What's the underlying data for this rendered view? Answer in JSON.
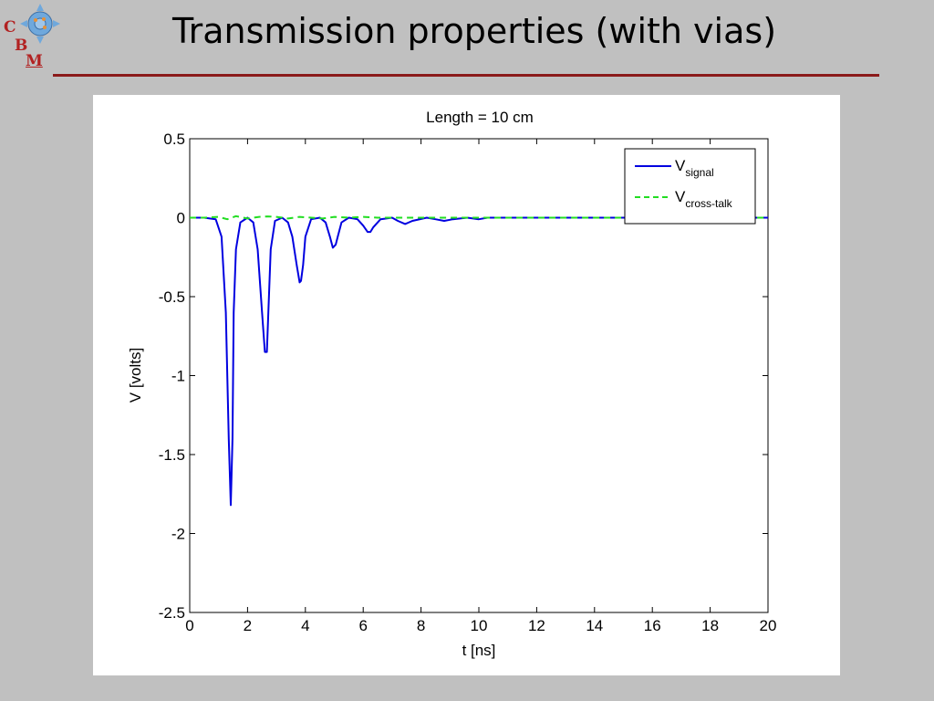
{
  "slide": {
    "title": "Transmission properties (with vias)",
    "logo": {
      "letters": [
        "C",
        "B",
        "M"
      ]
    }
  },
  "colors": {
    "background": "#c0c0c0",
    "title_rule": "#8b1a1a",
    "signal": "#0000e0",
    "crosstalk": "#22dd22"
  },
  "chart_data": {
    "type": "line",
    "title": "Length = 10 cm",
    "xlabel": "t [ns]",
    "ylabel": "V [volts]",
    "xlim": [
      0,
      20
    ],
    "ylim": [
      -2.5,
      0.5
    ],
    "xticks": [
      0,
      2,
      4,
      6,
      8,
      10,
      12,
      14,
      16,
      18,
      20
    ],
    "yticks": [
      0.5,
      0,
      -0.5,
      -1,
      -1.5,
      -2,
      -2.5
    ],
    "ytick_labels": [
      "0.5",
      "0",
      "-0.5",
      "-1",
      "-1.5",
      "-2",
      "-2.5"
    ],
    "grid": false,
    "legend_position": "top-right",
    "series": [
      {
        "name": "V",
        "subscript": "signal",
        "style": "solid",
        "color": "#0000e0",
        "x": [
          0,
          0.5,
          0.9,
          1.1,
          1.25,
          1.35,
          1.42,
          1.48,
          1.52,
          1.6,
          1.75,
          2.0,
          2.2,
          2.35,
          2.5,
          2.6,
          2.67,
          2.72,
          2.8,
          2.95,
          3.2,
          3.4,
          3.55,
          3.7,
          3.8,
          3.85,
          3.92,
          4.0,
          4.2,
          4.5,
          4.7,
          4.85,
          4.95,
          5.05,
          5.12,
          5.25,
          5.5,
          5.8,
          6.0,
          6.15,
          6.25,
          6.35,
          6.6,
          7.0,
          7.2,
          7.45,
          7.7,
          8.2,
          8.5,
          8.8,
          9.1,
          9.6,
          10.0,
          10.3,
          11.0,
          12.0,
          14.0,
          16.0,
          18.0,
          20.0
        ],
        "y": [
          0,
          0,
          -0.01,
          -0.12,
          -0.6,
          -1.4,
          -1.82,
          -1.4,
          -0.6,
          -0.2,
          -0.03,
          0,
          -0.03,
          -0.2,
          -0.6,
          -0.85,
          -0.85,
          -0.6,
          -0.2,
          -0.02,
          0,
          -0.03,
          -0.12,
          -0.3,
          -0.41,
          -0.4,
          -0.3,
          -0.12,
          -0.01,
          0,
          -0.03,
          -0.12,
          -0.19,
          -0.17,
          -0.12,
          -0.03,
          0,
          -0.01,
          -0.05,
          -0.09,
          -0.09,
          -0.06,
          -0.01,
          0,
          -0.02,
          -0.04,
          -0.02,
          0,
          -0.01,
          -0.02,
          -0.01,
          0,
          -0.01,
          0,
          0,
          0,
          0,
          0,
          0,
          0
        ]
      },
      {
        "name": "V",
        "subscript": "cross-talk",
        "style": "dashed",
        "color": "#22dd22",
        "x": [
          0,
          0.5,
          1.0,
          1.3,
          1.6,
          2.0,
          2.4,
          2.7,
          3.0,
          3.4,
          3.8,
          4.2,
          4.6,
          5.0,
          5.5,
          6.0,
          6.5,
          7.0,
          8.0,
          9.0,
          10.0,
          12.0,
          14.0,
          16.0,
          18.0,
          20.0
        ],
        "y": [
          0,
          0,
          0.005,
          -0.01,
          0.01,
          -0.005,
          0.005,
          0.008,
          0.005,
          -0.005,
          0.005,
          0,
          -0.005,
          0.005,
          0,
          0.005,
          0,
          0,
          0,
          0,
          0,
          0,
          0,
          0,
          0,
          0
        ]
      }
    ]
  }
}
